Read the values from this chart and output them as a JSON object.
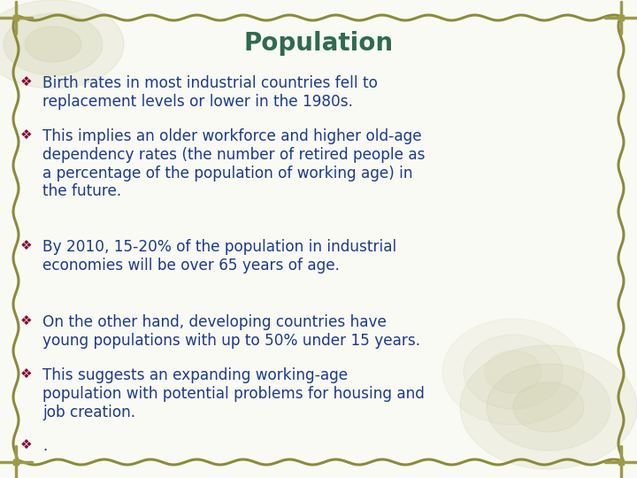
{
  "title": "Population",
  "title_color": "#2E6B4F",
  "title_fontsize": 20,
  "bullet_color": "#1B3A8C",
  "bullet_fontsize": 12.2,
  "diamond_color": "#8B0030",
  "background_color": "#FAFAF5",
  "border_color": "#8B8B3A",
  "corner_color": "#9B9B4A",
  "watermark_color": "#C8C8A0",
  "bullets": [
    "Birth rates in most industrial countries fell to\nreplacement levels or lower in the 1980s.",
    "This implies an older workforce and higher old-age\ndependency rates (the number of retired people as\na percentage of the population of working age) in\nthe future.",
    "By 2010, 15-20% of the population in industrial\neconomies will be over 65 years of age.",
    "On the other hand, developing countries have\nyoung populations with up to 50% under 15 years.",
    "This suggests an expanding working-age\npopulation with potential problems for housing and\njob creation.",
    "."
  ],
  "figsize": [
    7.2,
    5.4
  ],
  "dpi": 100
}
